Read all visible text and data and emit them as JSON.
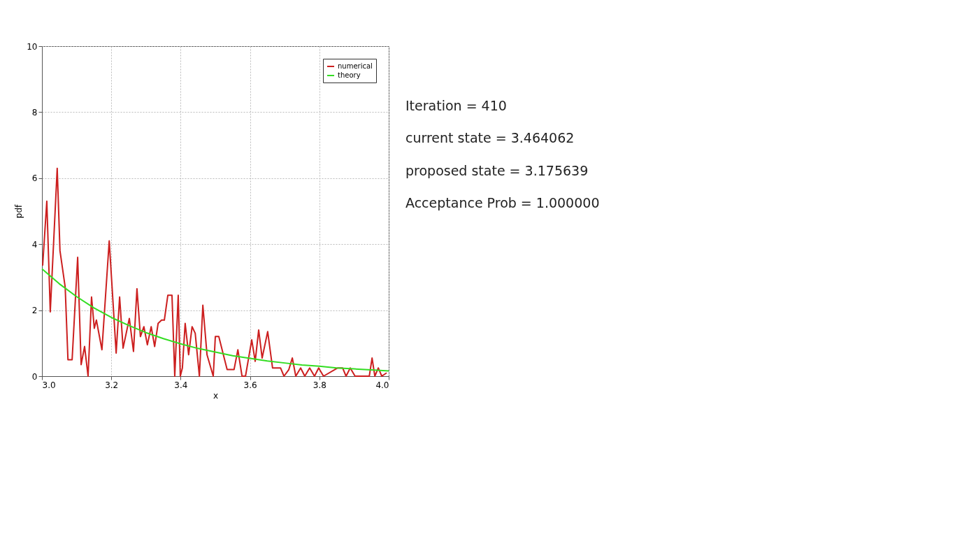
{
  "chart_data": {
    "type": "line",
    "xlabel": "x",
    "ylabel": "pdf",
    "xlim": [
      3.0,
      4.0
    ],
    "ylim": [
      0,
      10
    ],
    "xticks": [
      {
        "value": 3.0,
        "label": "3.0"
      },
      3.2,
      3.4,
      3.6,
      3.8,
      {
        "value": 4.0,
        "label": "4.0"
      }
    ],
    "yticks": [
      0,
      2,
      4,
      6,
      8,
      10
    ],
    "grid": true,
    "legend": "top right",
    "marker": "none",
    "line_style": "solid",
    "series": [
      {
        "name": "numerical",
        "color": "#cc1f1f",
        "x": [
          3.002,
          3.014,
          3.024,
          3.044,
          3.052,
          3.067,
          3.075,
          3.087,
          3.103,
          3.113,
          3.123,
          3.133,
          3.143,
          3.151,
          3.157,
          3.173,
          3.194,
          3.214,
          3.224,
          3.234,
          3.252,
          3.264,
          3.274,
          3.284,
          3.294,
          3.304,
          3.315,
          3.325,
          3.335,
          3.345,
          3.353,
          3.363,
          3.375,
          3.383,
          3.393,
          3.399,
          3.405,
          3.413,
          3.423,
          3.433,
          3.442,
          3.454,
          3.464,
          3.476,
          3.494,
          3.5,
          3.51,
          3.534,
          3.554,
          3.565,
          3.577,
          3.587,
          3.605,
          3.615,
          3.625,
          3.635,
          3.651,
          3.665,
          3.688,
          3.698,
          3.712,
          3.722,
          3.732,
          3.746,
          3.758,
          3.772,
          3.786,
          3.798,
          3.812,
          3.853,
          3.867,
          3.877,
          3.889,
          3.903,
          3.944,
          3.952,
          3.96,
          3.97,
          3.98,
          3.994
        ],
        "values": [
          3.35,
          5.3,
          1.95,
          6.3,
          3.8,
          2.7,
          0.5,
          0.5,
          3.6,
          0.35,
          0.9,
          0,
          2.4,
          1.45,
          1.7,
          0.8,
          4.1,
          0.7,
          2.4,
          0.85,
          1.75,
          0.75,
          2.65,
          1.2,
          1.5,
          0.95,
          1.5,
          0.9,
          1.6,
          1.7,
          1.7,
          2.45,
          2.45,
          0,
          2.45,
          0,
          0.25,
          1.6,
          0.65,
          1.5,
          1.3,
          0,
          2.15,
          0.65,
          0,
          1.2,
          1.2,
          0.2,
          0.2,
          0.8,
          0,
          0,
          1.1,
          0.45,
          1.4,
          0.55,
          1.35,
          0.25,
          0.25,
          0,
          0.2,
          0.55,
          0,
          0.25,
          0,
          0.25,
          0,
          0.25,
          0,
          0.25,
          0.25,
          0,
          0.25,
          0,
          0,
          0.55,
          0,
          0.25,
          0,
          0.1
        ]
      },
      {
        "name": "theory",
        "color": "#33dd22",
        "x": [
          3.0,
          3.05,
          3.1,
          3.15,
          3.2,
          3.25,
          3.3,
          3.35,
          3.4,
          3.45,
          3.5,
          3.55,
          3.6,
          3.65,
          3.7,
          3.75,
          3.8,
          3.85,
          3.9,
          3.95,
          4.0
        ],
        "values": [
          3.25,
          2.8,
          2.41,
          2.07,
          1.78,
          1.54,
          1.32,
          1.14,
          0.98,
          0.84,
          0.73,
          0.62,
          0.54,
          0.46,
          0.4,
          0.34,
          0.3,
          0.25,
          0.22,
          0.19,
          0.16
        ]
      }
    ],
    "annotations": [
      "Iteration = 410",
      "current state = 3.464062",
      "proposed state = 3.175639",
      "Acceptance Prob = 1.000000"
    ]
  }
}
